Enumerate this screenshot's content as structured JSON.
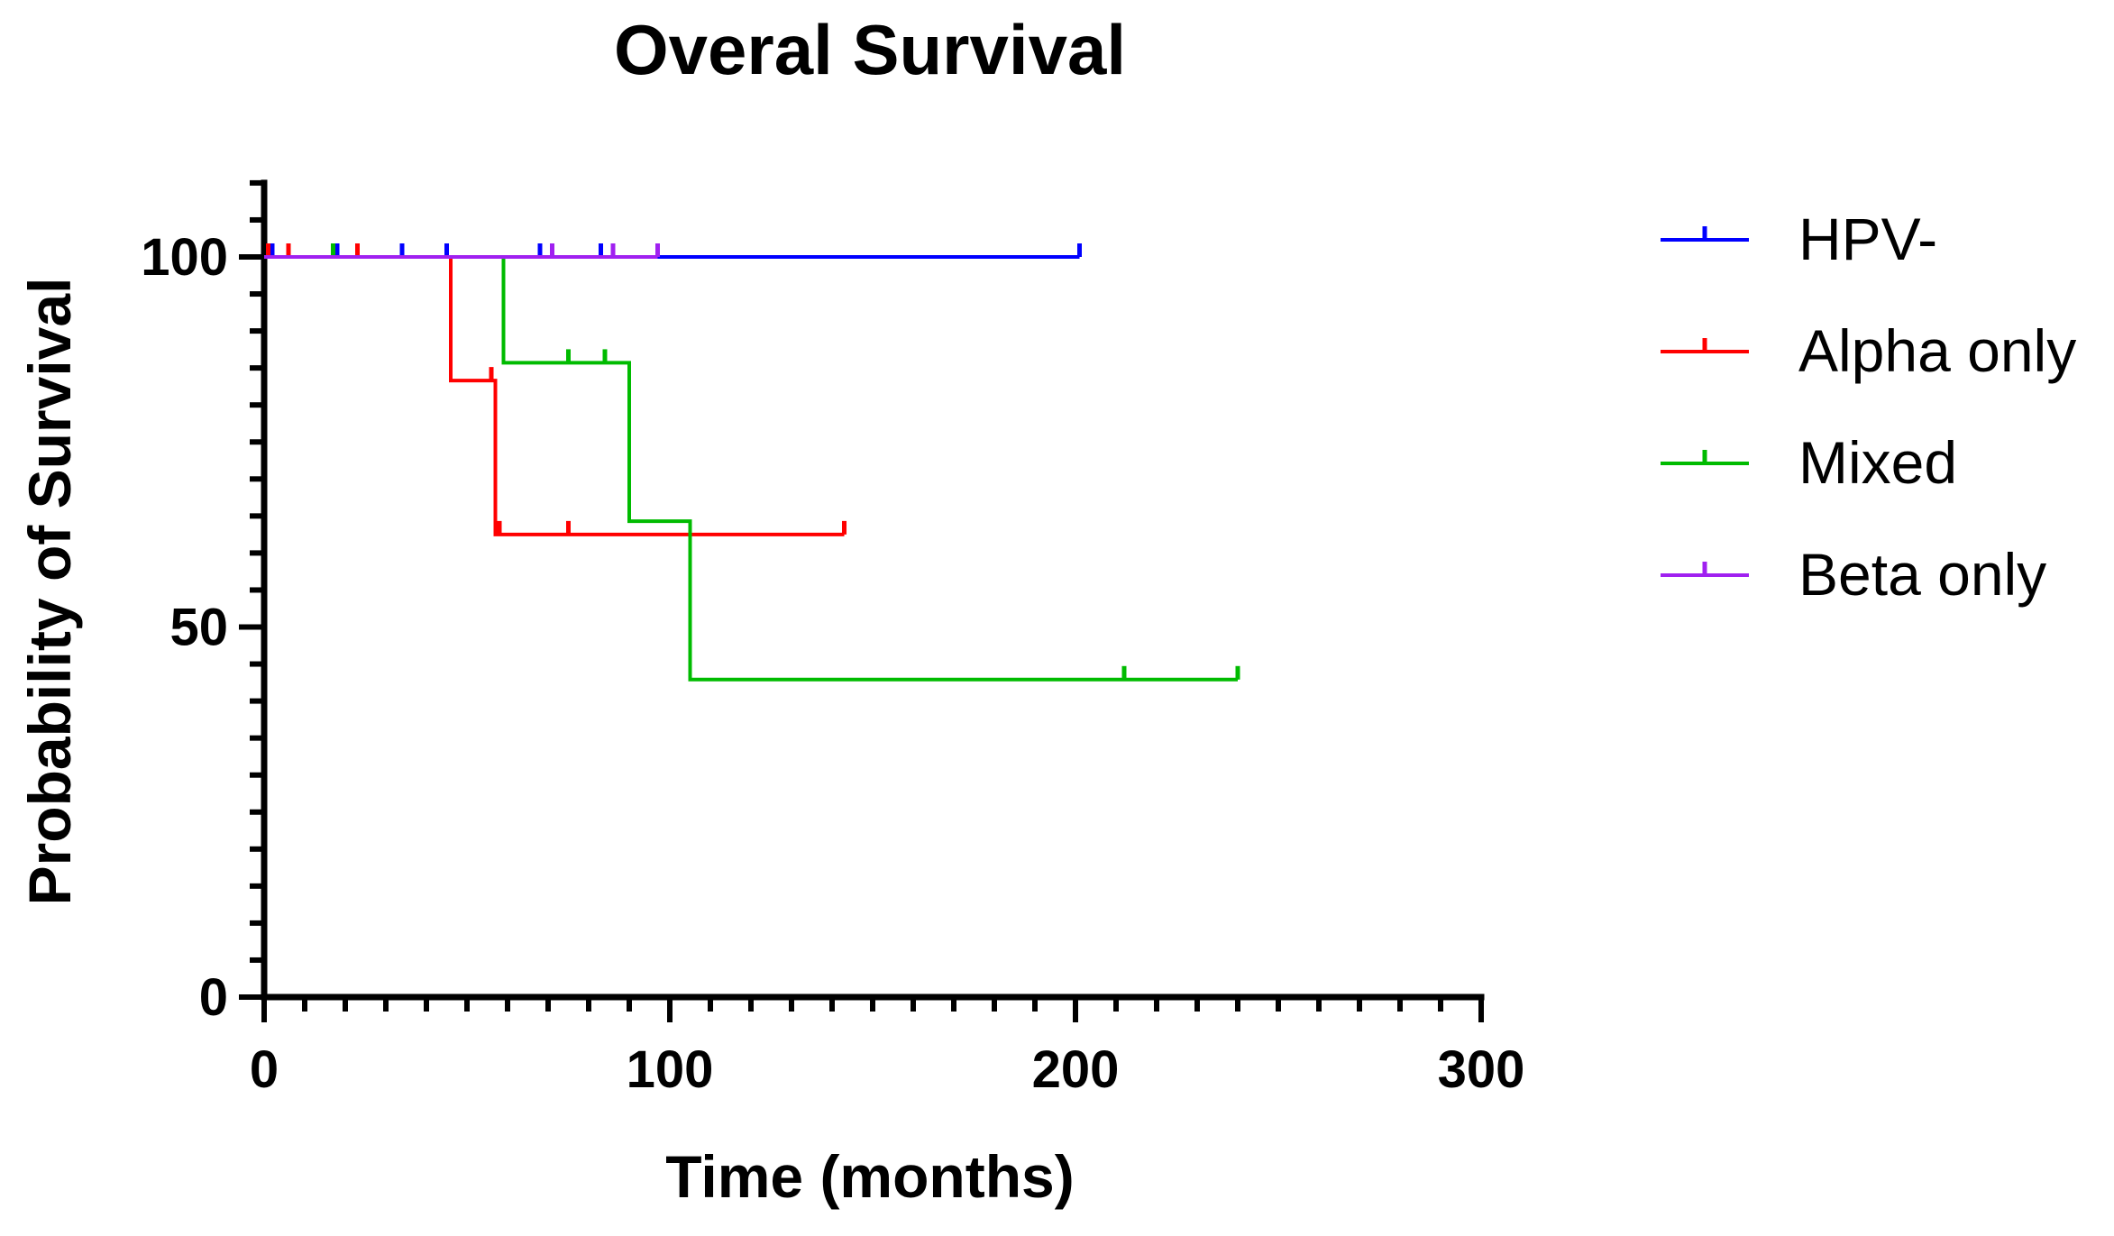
{
  "chart_data": {
    "type": "line",
    "subtype": "kaplan-meier step survival",
    "title": "Overal Survival",
    "xlabel": "Time (months)",
    "ylabel": "Probability of Survival",
    "xlim": [
      0,
      300
    ],
    "ylim": [
      0,
      110
    ],
    "x_ticks": [
      0,
      100,
      200,
      300
    ],
    "y_ticks": [
      0,
      50,
      100
    ],
    "x_minor_step": 10,
    "y_minor_step": 5,
    "grid": false,
    "legend_position": "right",
    "series": [
      {
        "name": "HPV-",
        "color": "#0000ff",
        "steps": [
          [
            0,
            100
          ],
          [
            201,
            100
          ]
        ],
        "censored": [
          [
            2,
            100
          ],
          [
            18,
            100
          ],
          [
            34,
            100
          ],
          [
            45,
            100
          ],
          [
            68,
            100
          ],
          [
            83,
            100
          ],
          [
            201,
            100
          ]
        ]
      },
      {
        "name": "Alpha only",
        "color": "#ff0000",
        "steps": [
          [
            0,
            100
          ],
          [
            46,
            100
          ],
          [
            46,
            83.3
          ],
          [
            57,
            83.3
          ],
          [
            57,
            62.5
          ],
          [
            143,
            62.5
          ]
        ],
        "censored": [
          [
            1,
            100
          ],
          [
            6,
            100
          ],
          [
            17,
            100
          ],
          [
            23,
            100
          ],
          [
            56,
            83.3
          ],
          [
            58,
            62.5
          ],
          [
            75,
            62.5
          ],
          [
            143,
            62.5
          ]
        ]
      },
      {
        "name": "Mixed",
        "color": "#00bb00",
        "steps": [
          [
            0,
            100
          ],
          [
            59,
            100
          ],
          [
            59,
            85.7
          ],
          [
            90,
            85.7
          ],
          [
            90,
            64.3
          ],
          [
            105,
            64.3
          ],
          [
            105,
            42.9
          ],
          [
            240,
            42.9
          ]
        ],
        "censored": [
          [
            17,
            100
          ],
          [
            75,
            85.7
          ],
          [
            84,
            85.7
          ],
          [
            212,
            42.9
          ],
          [
            240,
            42.9
          ]
        ]
      },
      {
        "name": "Beta only",
        "color": "#a020f0",
        "steps": [
          [
            0,
            100
          ],
          [
            97,
            100
          ]
        ],
        "censored": [
          [
            71,
            100
          ],
          [
            86,
            100
          ],
          [
            97,
            100
          ]
        ]
      }
    ]
  }
}
